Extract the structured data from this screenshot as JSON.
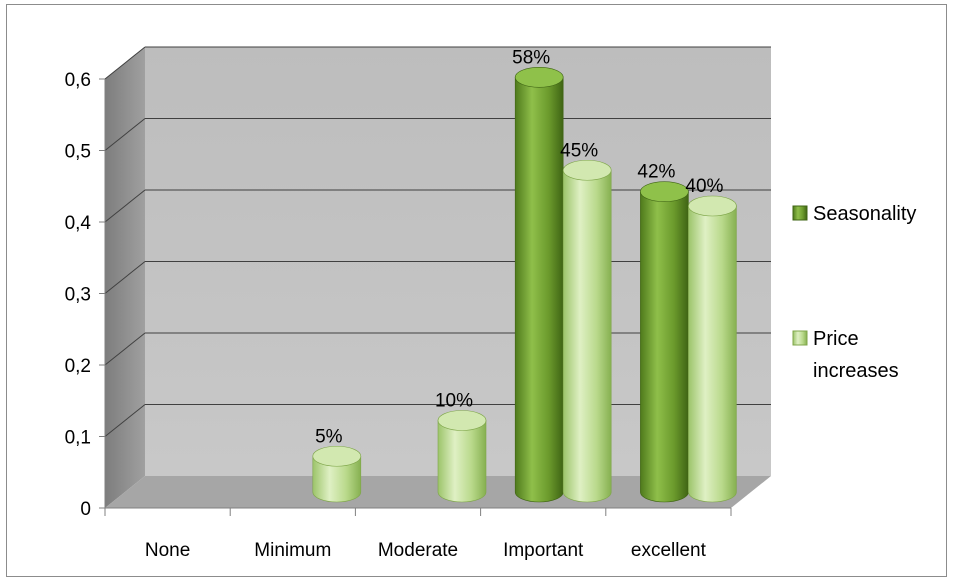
{
  "chart_data": {
    "type": "bar",
    "style": "3d-cylinder",
    "categories": [
      "None",
      "Minimum",
      "Moderate",
      "Important",
      "excellent"
    ],
    "series": [
      {
        "name": "Seasonality",
        "color": "#6b9a2c",
        "values": [
          null,
          null,
          null,
          0.58,
          0.42
        ],
        "labels": [
          "",
          "",
          "",
          "58%",
          "42%"
        ]
      },
      {
        "name": "Price increases",
        "legend_lines": [
          "Price",
          "increases"
        ],
        "color": "#b9d98b",
        "values": [
          null,
          0.05,
          0.1,
          0.45,
          0.4
        ],
        "labels": [
          "",
          "5%",
          "10%",
          "45%",
          "40%"
        ]
      }
    ],
    "ylim": [
      0,
      0.6
    ],
    "yticks": [
      0,
      0.1,
      0.2,
      0.3,
      0.4,
      0.5,
      0.6
    ],
    "ytick_labels": [
      "0",
      "0,1",
      "0,2",
      "0,3",
      "0,4",
      "0,5",
      "0,6"
    ],
    "title": "",
    "xlabel": "",
    "ylabel": "",
    "grid": true,
    "legend_position": "right",
    "colors": {
      "walls": "#c0c0c0",
      "floor": "#a6a6a6",
      "gridline": "#404040"
    }
  }
}
